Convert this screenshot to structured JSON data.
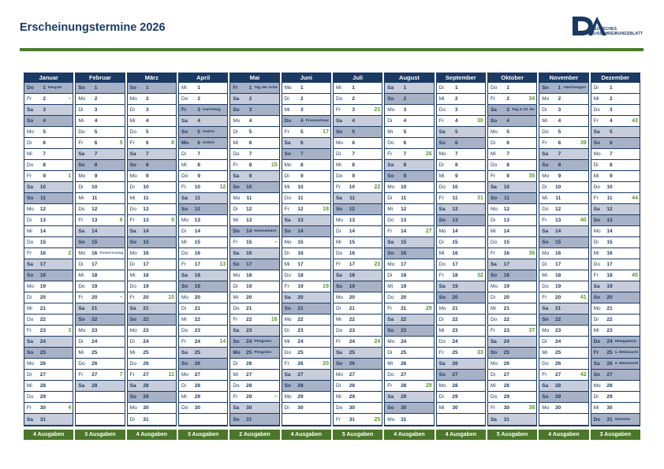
{
  "page": {
    "title": "Erscheinungstermine 2026"
  },
  "logo": {
    "abbr": "DA",
    "line1": "DEUTSCHES",
    "line2": "AUSSCHREIBUNGSBLATT"
  },
  "colors": {
    "navy": "#1a3a63",
    "saturday_bg": "#c7cdda",
    "sunday_holiday_bg": "#a8b2c7",
    "green_rule": "#4b7a2b",
    "green_badge": "#4a7729",
    "green_issue": "#55992b"
  },
  "weekdays": [
    "Mo",
    "Di",
    "Mi",
    "Do",
    "Fr",
    "Sa",
    "So"
  ],
  "no_issue_symbol": "–",
  "months": [
    {
      "name": "Januar",
      "start": 3,
      "days": 31,
      "badge": "4 Ausgaben",
      "specials": {
        "1": {
          "note": "Neujahr",
          "holiday": true
        },
        "2": {
          "dash": true
        },
        "9": {
          "issue": "1"
        },
        "16": {
          "issue": "2"
        },
        "23": {
          "issue": "3"
        },
        "30": {
          "issue": "4"
        }
      }
    },
    {
      "name": "Februar",
      "start": 6,
      "days": 28,
      "badge": "3 Ausgaben",
      "specials": {
        "6": {
          "issue": "5"
        },
        "13": {
          "issue": "6"
        },
        "16": {
          "note": "Rosenmontag"
        },
        "20": {
          "dash": true
        },
        "27": {
          "issue": "7"
        }
      }
    },
    {
      "name": "März",
      "start": 6,
      "days": 31,
      "badge": "4 Ausgaben",
      "specials": {
        "6": {
          "issue": "8"
        },
        "13": {
          "issue": "9"
        },
        "20": {
          "issue": "10"
        },
        "27": {
          "issue": "11"
        }
      }
    },
    {
      "name": "April",
      "start": 2,
      "days": 30,
      "badge": "3 Ausgaben",
      "specials": {
        "3": {
          "note": "Karfreitag",
          "holiday": true
        },
        "5": {
          "note": "Ostern",
          "holiday": true
        },
        "6": {
          "note": "Ostern",
          "holiday": true
        },
        "10": {
          "issue": "12"
        },
        "17": {
          "issue": "13"
        },
        "24": {
          "issue": "14"
        }
      }
    },
    {
      "name": "Mai",
      "start": 4,
      "days": 31,
      "badge": "2 Ausgaben",
      "specials": {
        "1": {
          "note": "Tag der Arbeit",
          "holiday": true
        },
        "8": {
          "issue": "15"
        },
        "14": {
          "note": "Himmelfahrt",
          "holiday": true
        },
        "15": {
          "dash": true
        },
        "22": {
          "issue": "16"
        },
        "24": {
          "note": "Pfingsten",
          "holiday": true
        },
        "25": {
          "note": "Pfingsten",
          "holiday": true
        },
        "29": {
          "dash": true
        }
      }
    },
    {
      "name": "Juni",
      "start": 0,
      "days": 30,
      "badge": "4 Ausgaben",
      "specials": {
        "4": {
          "note": "Fronleichnam",
          "holiday": true
        },
        "5": {
          "issue": "17"
        },
        "12": {
          "issue": "18"
        },
        "19": {
          "issue": "19"
        },
        "26": {
          "issue": "20"
        }
      }
    },
    {
      "name": "Juli",
      "start": 2,
      "days": 31,
      "badge": "5 Ausgaben",
      "specials": {
        "3": {
          "issue": "21"
        },
        "10": {
          "issue": "22"
        },
        "17": {
          "issue": "23"
        },
        "24": {
          "issue": "24"
        },
        "31": {
          "issue": "25"
        }
      }
    },
    {
      "name": "August",
      "start": 5,
      "days": 31,
      "badge": "4 Ausgaben",
      "specials": {
        "7": {
          "issue": "26"
        },
        "14": {
          "issue": "27"
        },
        "21": {
          "issue": "28"
        },
        "28": {
          "issue": "29"
        }
      }
    },
    {
      "name": "September",
      "start": 1,
      "days": 30,
      "badge": "4 Ausgaben",
      "specials": {
        "4": {
          "issue": "30"
        },
        "11": {
          "issue": "31"
        },
        "18": {
          "issue": "32"
        },
        "25": {
          "issue": "33"
        }
      }
    },
    {
      "name": "Oktober",
      "start": 3,
      "days": 31,
      "badge": "5 Ausgaben",
      "specials": {
        "2": {
          "issue": "34"
        },
        "3": {
          "note": "Tag d. Dt. Einheit",
          "holiday": true
        },
        "9": {
          "issue": "35"
        },
        "16": {
          "issue": "36"
        },
        "23": {
          "issue": "37"
        },
        "30": {
          "issue": "38"
        }
      }
    },
    {
      "name": "November",
      "start": 6,
      "days": 30,
      "badge": "4 Ausgaben",
      "specials": {
        "1": {
          "note": "Allerheiligen",
          "holiday": true
        },
        "6": {
          "issue": "39"
        },
        "13": {
          "issue": "40"
        },
        "20": {
          "issue": "41"
        },
        "27": {
          "issue": "42"
        }
      }
    },
    {
      "name": "Dezember",
      "start": 1,
      "days": 31,
      "badge": "3 Ausgaben",
      "specials": {
        "4": {
          "issue": "43"
        },
        "11": {
          "issue": "44"
        },
        "18": {
          "issue": "45"
        },
        "24": {
          "note": "Heiligabend",
          "holiday": true
        },
        "25": {
          "note": "1. Weihnachtstag",
          "holiday": true
        },
        "26": {
          "note": "2. Weihnachtstag",
          "holiday": true
        },
        "31": {
          "note": "Silvester",
          "holiday": true
        }
      }
    }
  ]
}
